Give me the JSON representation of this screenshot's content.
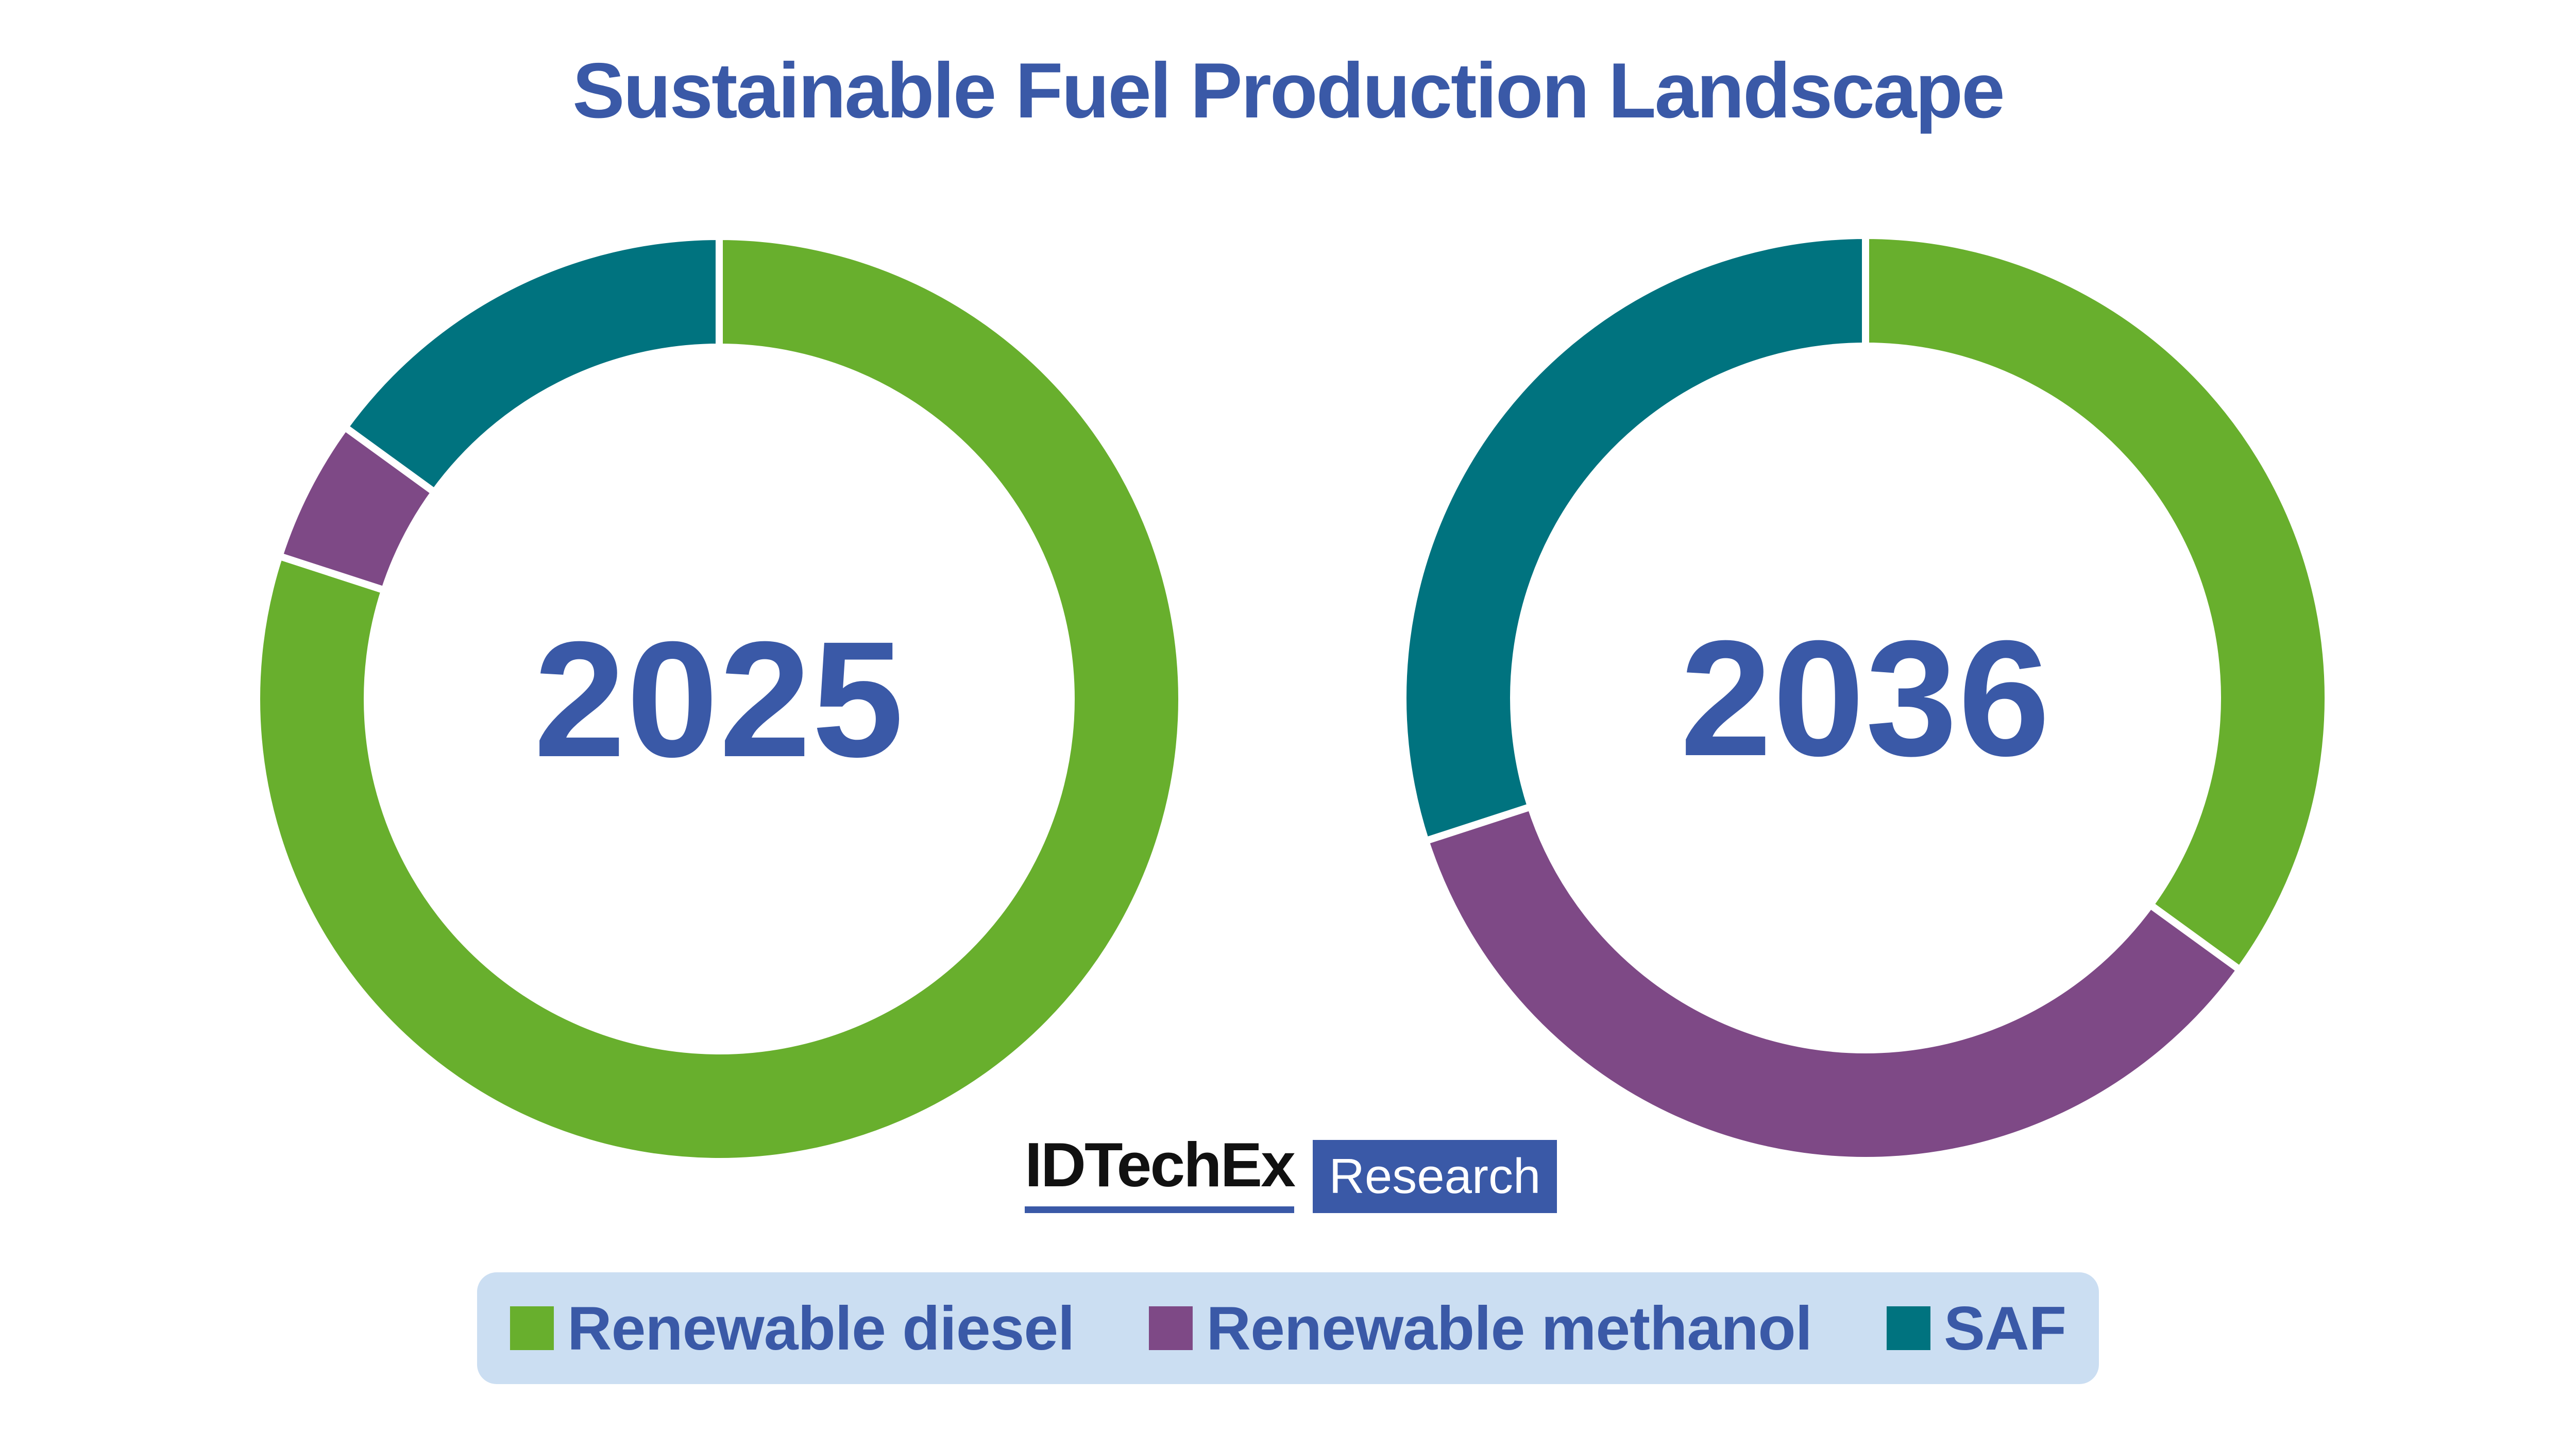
{
  "title": "Sustainable Fuel Production Landscape",
  "palette": {
    "title_blue": "#3A59A7",
    "green": "#68AF2D",
    "purple": "#7E4986",
    "teal": "#00737F",
    "legend_bg": "#CBDEF2",
    "logo_black": "#111111",
    "logo_blue": "#3A59A7",
    "background": "#FFFFFF",
    "segment_gap_white": "#FFFFFF"
  },
  "chart_data": [
    {
      "type": "pie",
      "subtype": "donut",
      "center_label": "2025",
      "categories": [
        "Renewable diesel",
        "Renewable methanol",
        "SAF"
      ],
      "values_percent": [
        80,
        5,
        15
      ],
      "colors": [
        "#68AF2D",
        "#7E4986",
        "#00737F"
      ],
      "start_angle_deg": 0,
      "direction": "clockwise",
      "inner_radius_ratio": 0.755,
      "legend_position": "bottom"
    },
    {
      "type": "pie",
      "subtype": "donut",
      "center_label": "2036",
      "categories": [
        "Renewable diesel",
        "Renewable methanol",
        "SAF"
      ],
      "values_percent": [
        35,
        35,
        30
      ],
      "colors": [
        "#68AF2D",
        "#7E4986",
        "#00737F"
      ],
      "start_angle_deg": 0,
      "direction": "clockwise",
      "inner_radius_ratio": 0.755,
      "legend_position": "bottom"
    }
  ],
  "legend": {
    "items": [
      {
        "label": "Renewable diesel",
        "color": "#68AF2D"
      },
      {
        "label": "Renewable methanol",
        "color": "#7E4986"
      },
      {
        "label": "SAF",
        "color": "#00737F"
      }
    ]
  },
  "logo": {
    "wordmark": "IDTechEx",
    "badge": "Research"
  }
}
